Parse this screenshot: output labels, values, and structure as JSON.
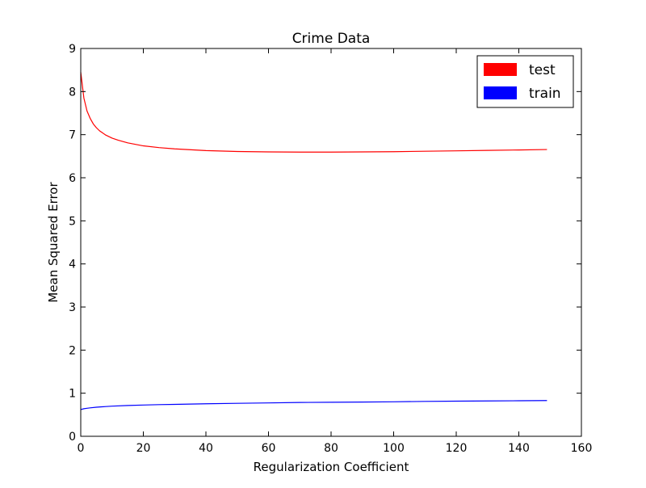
{
  "chart_data": {
    "type": "line",
    "title": "Crime Data",
    "xlabel": "Regularization Coefficient",
    "ylabel": "Mean Squared Error",
    "xlim": [
      0,
      160
    ],
    "ylim": [
      0,
      9
    ],
    "xticks": [
      0,
      20,
      40,
      60,
      80,
      100,
      120,
      140,
      160
    ],
    "yticks": [
      0,
      1,
      2,
      3,
      4,
      5,
      6,
      7,
      8,
      9
    ],
    "grid": false,
    "legend_position": "top-right",
    "series": [
      {
        "name": "test",
        "color": "#ff0000",
        "x": [
          0,
          1,
          2,
          3,
          4,
          5,
          6,
          8,
          10,
          12,
          15,
          20,
          25,
          30,
          40,
          50,
          60,
          70,
          80,
          90,
          100,
          110,
          120,
          130,
          140,
          149
        ],
        "y": [
          8.45,
          7.85,
          7.55,
          7.38,
          7.25,
          7.16,
          7.09,
          6.99,
          6.92,
          6.87,
          6.81,
          6.74,
          6.7,
          6.67,
          6.63,
          6.61,
          6.6,
          6.595,
          6.595,
          6.6,
          6.605,
          6.615,
          6.625,
          6.635,
          6.645,
          6.655
        ]
      },
      {
        "name": "train",
        "color": "#0000ff",
        "x": [
          0,
          1,
          2,
          3,
          5,
          8,
          10,
          15,
          20,
          25,
          30,
          40,
          50,
          60,
          70,
          80,
          90,
          100,
          110,
          120,
          130,
          140,
          149
        ],
        "y": [
          0.62,
          0.64,
          0.65,
          0.66,
          0.675,
          0.69,
          0.7,
          0.715,
          0.725,
          0.735,
          0.74,
          0.755,
          0.765,
          0.775,
          0.785,
          0.79,
          0.795,
          0.8,
          0.81,
          0.815,
          0.82,
          0.825,
          0.83
        ]
      }
    ]
  }
}
